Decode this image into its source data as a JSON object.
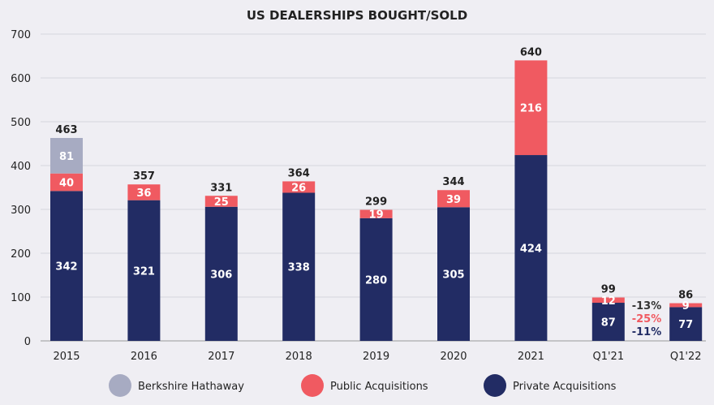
{
  "chart_data": {
    "type": "bar",
    "stacked": true,
    "title": "US DEALERSHIPS BOUGHT/SOLD",
    "categories": [
      "2015",
      "2016",
      "2017",
      "2018",
      "2019",
      "2020",
      "2021",
      "Q1'21",
      "Q1'22"
    ],
    "series": [
      {
        "name": "Private Acquisitions",
        "color": "#222c64",
        "values": [
          342,
          321,
          306,
          338,
          280,
          305,
          424,
          87,
          77
        ]
      },
      {
        "name": "Public Acquisitions",
        "color": "#f05a61",
        "values": [
          40,
          36,
          25,
          26,
          19,
          39,
          216,
          12,
          9
        ]
      },
      {
        "name": "Berkshire Hathaway",
        "color": "#a7abc2",
        "values": [
          81,
          0,
          0,
          0,
          0,
          0,
          0,
          0,
          0
        ]
      }
    ],
    "totals": [
      463,
      357,
      331,
      364,
      299,
      344,
      640,
      99,
      86
    ],
    "ylim": [
      0,
      700
    ],
    "yticks": [
      0,
      100,
      200,
      300,
      400,
      500,
      600,
      700
    ],
    "grid": true,
    "legend_placement": "bottom",
    "legend_order": [
      "Berkshire Hathaway",
      "Public Acquisitions",
      "Private Acquisitions"
    ],
    "annotations": [
      {
        "text": "-13%",
        "color": "#333333"
      },
      {
        "text": "-25%",
        "color": "#f05a61"
      },
      {
        "text": "-11%",
        "color": "#222c64"
      }
    ]
  }
}
